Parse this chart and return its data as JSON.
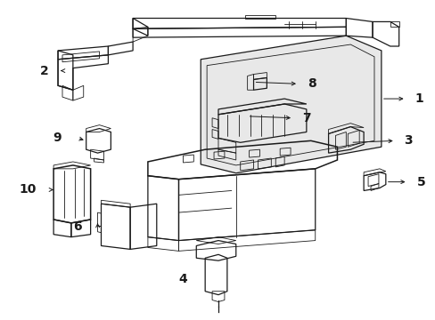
{
  "bg_color": "#ffffff",
  "line_color": "#1a1a1a",
  "fig_width": 4.89,
  "fig_height": 3.6,
  "dpi": 100,
  "label_fontsize": 10,
  "label_bold": true
}
